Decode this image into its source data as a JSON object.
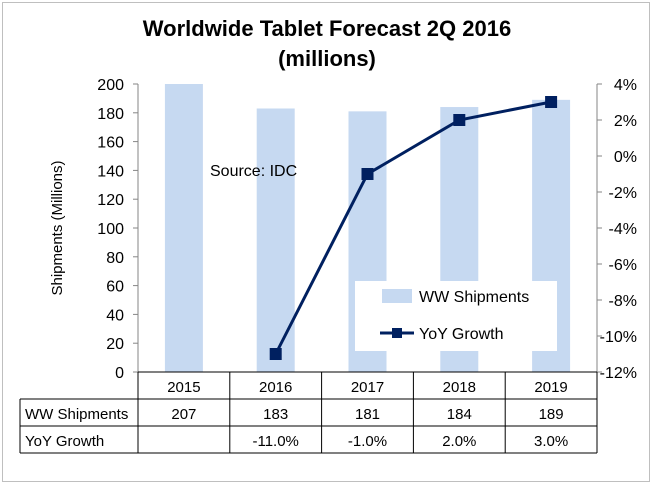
{
  "chart_data": {
    "type": "bar+line",
    "title_line1": "Worldwide Tablet Forecast 2Q 2016",
    "title_line2": "(millions)",
    "ylabel": "Shipments (Millions)",
    "annotation": "Source: IDC",
    "categories": [
      "2015",
      "2016",
      "2017",
      "2018",
      "2019"
    ],
    "left_axis": {
      "min": 0,
      "max": 200,
      "ticks": [
        "0",
        "20",
        "40",
        "60",
        "80",
        "100",
        "120",
        "140",
        "160",
        "180",
        "200"
      ]
    },
    "right_axis": {
      "min": -12,
      "max": 4,
      "ticks": [
        "-12%",
        "-10%",
        "-8%",
        "-6%",
        "-4%",
        "-2%",
        "0%",
        "2%",
        "4%"
      ]
    },
    "series": [
      {
        "name": "WW Shipments",
        "type": "bar",
        "axis": "left",
        "color": "#c6d9f1",
        "values": [
          207,
          183,
          181,
          184,
          189
        ]
      },
      {
        "name": "YoY Growth",
        "type": "line",
        "axis": "right",
        "color": "#002060",
        "values": [
          null,
          -11.0,
          -1.0,
          2.0,
          3.0
        ]
      }
    ],
    "table": {
      "rows": [
        {
          "label": "WW Shipments",
          "cells": [
            "207",
            "183",
            "181",
            "184",
            "189"
          ]
        },
        {
          "label": "YoY Growth",
          "cells": [
            "",
            "-11.0%",
            "-1.0%",
            "2.0%",
            "3.0%"
          ]
        }
      ]
    },
    "legend": {
      "placement": "inside-bottom-right"
    },
    "grid": false
  }
}
